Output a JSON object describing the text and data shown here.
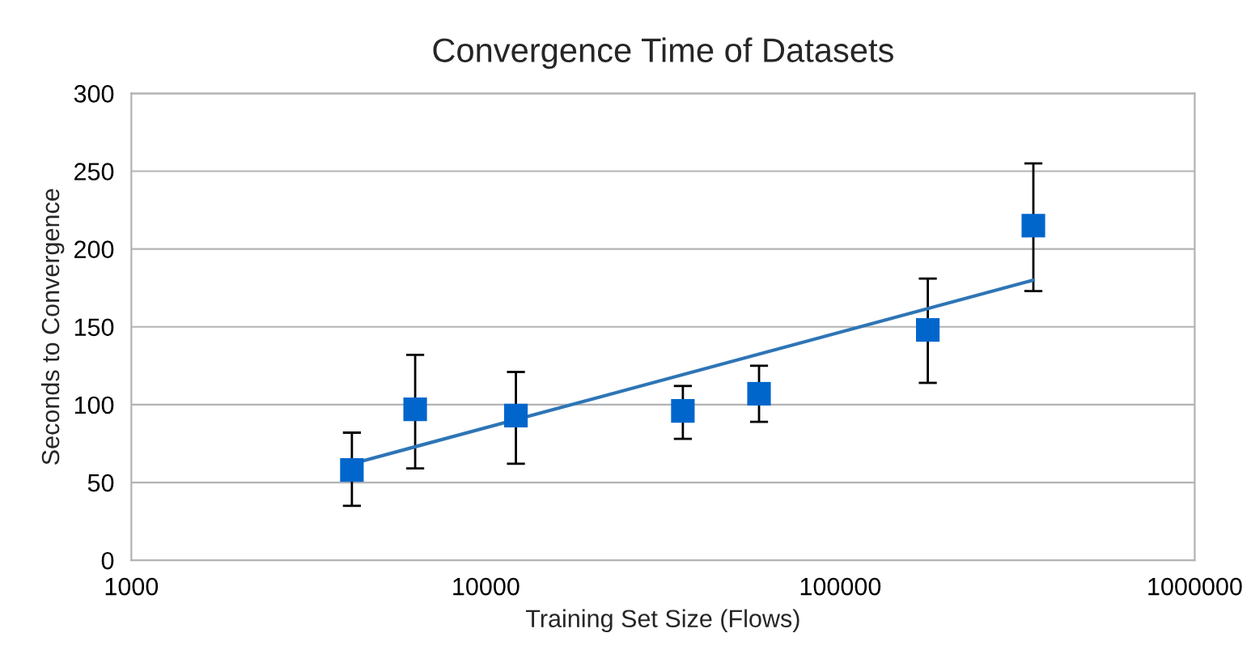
{
  "chart_data": {
    "type": "scatter",
    "title": "Convergence Time of Datasets",
    "xlabel": "Training Set Size (Flows)",
    "ylabel": "Seconds to Convergence",
    "log": "x",
    "xlim": [
      1000,
      1000000
    ],
    "xticks": [
      1000,
      10000,
      100000,
      1000000
    ],
    "ylim": [
      0,
      300
    ],
    "yticks": [
      0,
      50,
      100,
      150,
      200,
      250,
      300
    ],
    "grid": "y",
    "series": [
      {
        "marker": "square",
        "color": "#0066cc",
        "x": [
          4190,
          6320,
          12160,
          35970,
          59000,
          176600,
          350600
        ],
        "values": [
          58,
          97,
          93,
          96,
          107,
          148,
          215
        ],
        "errors": [
          [
            35,
            82
          ],
          [
            59,
            132
          ],
          [
            62,
            121
          ],
          [
            78,
            112
          ],
          [
            89,
            125
          ],
          [
            114,
            181
          ],
          [
            173,
            255
          ]
        ]
      },
      {
        "type": "line",
        "marker": "none",
        "color": "#2e75b6",
        "x": [
          4190,
          350600
        ],
        "values": [
          62,
          180
        ]
      }
    ]
  }
}
